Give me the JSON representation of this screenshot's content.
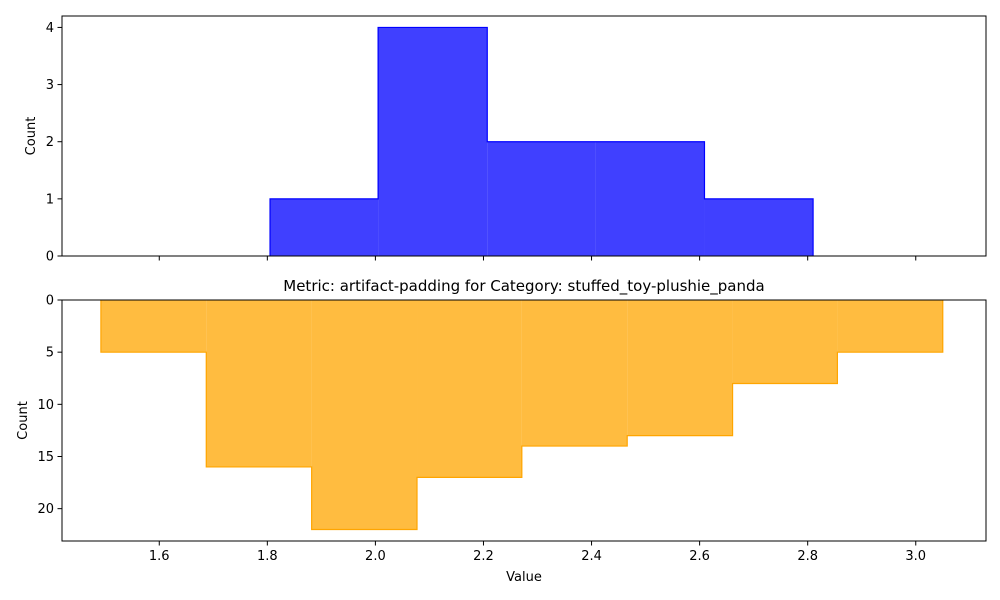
{
  "chart_data": [
    {
      "type": "histogram",
      "orientation": "up",
      "title": "",
      "xlabel": "",
      "ylabel": "Count",
      "color": "#0000ff",
      "bins": [
        {
          "x0": 1.805,
          "x1": 2.005,
          "count": 1
        },
        {
          "x0": 2.005,
          "x1": 2.207,
          "count": 4
        },
        {
          "x0": 2.207,
          "x1": 2.408,
          "count": 2
        },
        {
          "x0": 2.408,
          "x1": 2.609,
          "count": 2
        },
        {
          "x0": 2.609,
          "x1": 2.81,
          "count": 1
        }
      ],
      "xlim": [
        1.42,
        3.13
      ],
      "ylim": [
        0,
        4.2
      ],
      "xticks": [
        1.6,
        1.8,
        2.0,
        2.2,
        2.4,
        2.6,
        2.8,
        3.0
      ],
      "yticks": [
        0,
        1,
        2,
        3,
        4
      ],
      "ytick_labels": [
        "0",
        "1",
        "2",
        "3",
        "4"
      ],
      "show_xtick_labels": false
    },
    {
      "type": "histogram",
      "orientation": "down",
      "title": "Metric: artifact-padding for Category: stuffed_toy-plushie_panda",
      "xlabel": "Value",
      "ylabel": "Count",
      "color": "#ffa500",
      "bins": [
        {
          "x0": 1.492,
          "x1": 1.687,
          "count": 5
        },
        {
          "x0": 1.687,
          "x1": 1.882,
          "count": 16
        },
        {
          "x0": 1.882,
          "x1": 2.077,
          "count": 22
        },
        {
          "x0": 2.077,
          "x1": 2.271,
          "count": 17
        },
        {
          "x0": 2.271,
          "x1": 2.466,
          "count": 14
        },
        {
          "x0": 2.466,
          "x1": 2.661,
          "count": 13
        },
        {
          "x0": 2.661,
          "x1": 2.855,
          "count": 8
        },
        {
          "x0": 2.855,
          "x1": 3.05,
          "count": 5
        }
      ],
      "xlim": [
        1.42,
        3.13
      ],
      "ylim": [
        0,
        23.1
      ],
      "xticks": [
        1.6,
        1.8,
        2.0,
        2.2,
        2.4,
        2.6,
        2.8,
        3.0
      ],
      "xtick_labels": [
        "1.6",
        "1.8",
        "2.0",
        "2.2",
        "2.4",
        "2.6",
        "2.8",
        "3.0"
      ],
      "yticks": [
        0,
        5,
        10,
        15,
        20
      ],
      "ytick_labels": [
        "0",
        "5",
        "10",
        "15",
        "20"
      ],
      "show_xtick_labels": true
    }
  ]
}
